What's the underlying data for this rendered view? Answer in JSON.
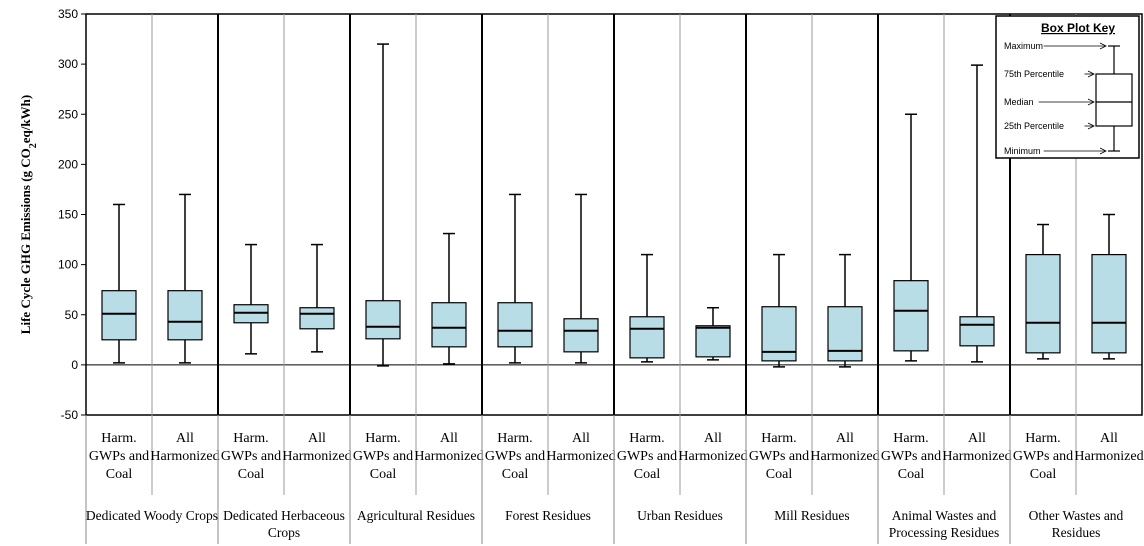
{
  "chart_data": {
    "type": "box",
    "ylabel_parts": [
      "Life Cycle GHG Emissions  (g CO",
      "2",
      "eq/kWh)"
    ],
    "ylim": [
      -50,
      350
    ],
    "yticks": [
      -50,
      0,
      50,
      100,
      150,
      200,
      250,
      300,
      350
    ],
    "categories": [
      {
        "lines": [
          "Harm.",
          "GWPs and",
          "Coal"
        ]
      },
      {
        "lines": [
          "All",
          "Harmonized"
        ]
      }
    ],
    "groups": [
      {
        "lines": [
          "Dedicated Woody Crops"
        ],
        "boxes": [
          {
            "min": 2,
            "q1": 25,
            "median": 51,
            "q3": 74,
            "max": 160
          },
          {
            "min": 2,
            "q1": 25,
            "median": 43,
            "q3": 74,
            "max": 170
          }
        ]
      },
      {
        "lines": [
          "Dedicated Herbaceous",
          "Crops"
        ],
        "boxes": [
          {
            "min": 11,
            "q1": 42,
            "median": 52,
            "q3": 60,
            "max": 120
          },
          {
            "min": 13,
            "q1": 36,
            "median": 51,
            "q3": 57,
            "max": 120
          }
        ]
      },
      {
        "lines": [
          "Agricultural Residues"
        ],
        "boxes": [
          {
            "min": -1,
            "q1": 26,
            "median": 38,
            "q3": 64,
            "max": 320
          },
          {
            "min": 1,
            "q1": 18,
            "median": 37,
            "q3": 62,
            "max": 131
          }
        ]
      },
      {
        "lines": [
          "Forest Residues"
        ],
        "boxes": [
          {
            "min": 2,
            "q1": 18,
            "median": 34,
            "q3": 62,
            "max": 170
          },
          {
            "min": 2,
            "q1": 13,
            "median": 34,
            "q3": 46,
            "max": 170
          }
        ]
      },
      {
        "lines": [
          "Urban Residues"
        ],
        "boxes": [
          {
            "min": 3,
            "q1": 7,
            "median": 36,
            "q3": 48,
            "max": 110
          },
          {
            "min": 5,
            "q1": 8,
            "median": 37,
            "q3": 39,
            "max": 57
          }
        ]
      },
      {
        "lines": [
          "Mill Residues"
        ],
        "boxes": [
          {
            "min": -2,
            "q1": 4,
            "median": 13,
            "q3": 58,
            "max": 110
          },
          {
            "min": -2,
            "q1": 4,
            "median": 14,
            "q3": 58,
            "max": 110
          }
        ]
      },
      {
        "lines": [
          "Animal Wastes and",
          "Processing Residues"
        ],
        "boxes": [
          {
            "min": 4,
            "q1": 14,
            "median": 54,
            "q3": 84,
            "max": 250
          },
          {
            "min": 3,
            "q1": 19,
            "median": 40,
            "q3": 48,
            "max": 299
          }
        ]
      },
      {
        "lines": [
          "Other Wastes and",
          "Residues"
        ],
        "boxes": [
          {
            "min": 6,
            "q1": 12,
            "median": 42,
            "q3": 110,
            "max": 140
          },
          {
            "min": 6,
            "q1": 12,
            "median": 42,
            "q3": 110,
            "max": 150
          }
        ]
      }
    ],
    "box_fill": "#b8dde6",
    "grid": false,
    "key": {
      "title": "Box Plot Key",
      "labels": [
        "Maximum",
        "75th Percentile",
        "Median",
        "25th Percentile",
        "Minimum"
      ],
      "placement": "top-right"
    }
  }
}
